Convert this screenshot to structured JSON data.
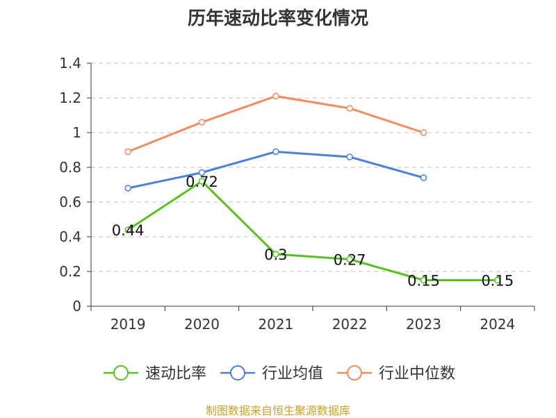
{
  "chart_data": {
    "type": "line",
    "title": "历年速动比率变化情况",
    "categories": [
      "2019",
      "2020",
      "2021",
      "2022",
      "2023",
      "2024"
    ],
    "ylim": [
      0,
      1.4
    ],
    "yticks": [
      "0",
      "0.2",
      "0.4",
      "0.6",
      "0.8",
      "1",
      "1.2",
      "1.4"
    ],
    "ytick_values": [
      0,
      0.2,
      0.4,
      0.6,
      0.8,
      1.0,
      1.2,
      1.4
    ],
    "grid": true,
    "legend_position": "bottom",
    "series": [
      {
        "name": "速动比率",
        "color": "#52c41a",
        "values": [
          0.44,
          0.72,
          0.3,
          0.27,
          0.15,
          0.15
        ],
        "labels": [
          "0.44",
          "0.72",
          "0.3",
          "0.27",
          "0.15",
          "0.15"
        ]
      },
      {
        "name": "行业均值",
        "color": "#4a7fdb",
        "values": [
          0.68,
          0.77,
          0.89,
          0.86,
          0.74,
          null
        ]
      },
      {
        "name": "行业中位数",
        "color": "#f5895a",
        "values": [
          0.89,
          1.06,
          1.21,
          1.14,
          1.0,
          null
        ]
      }
    ]
  },
  "source_note": "制图数据来自恒生聚源数据库"
}
